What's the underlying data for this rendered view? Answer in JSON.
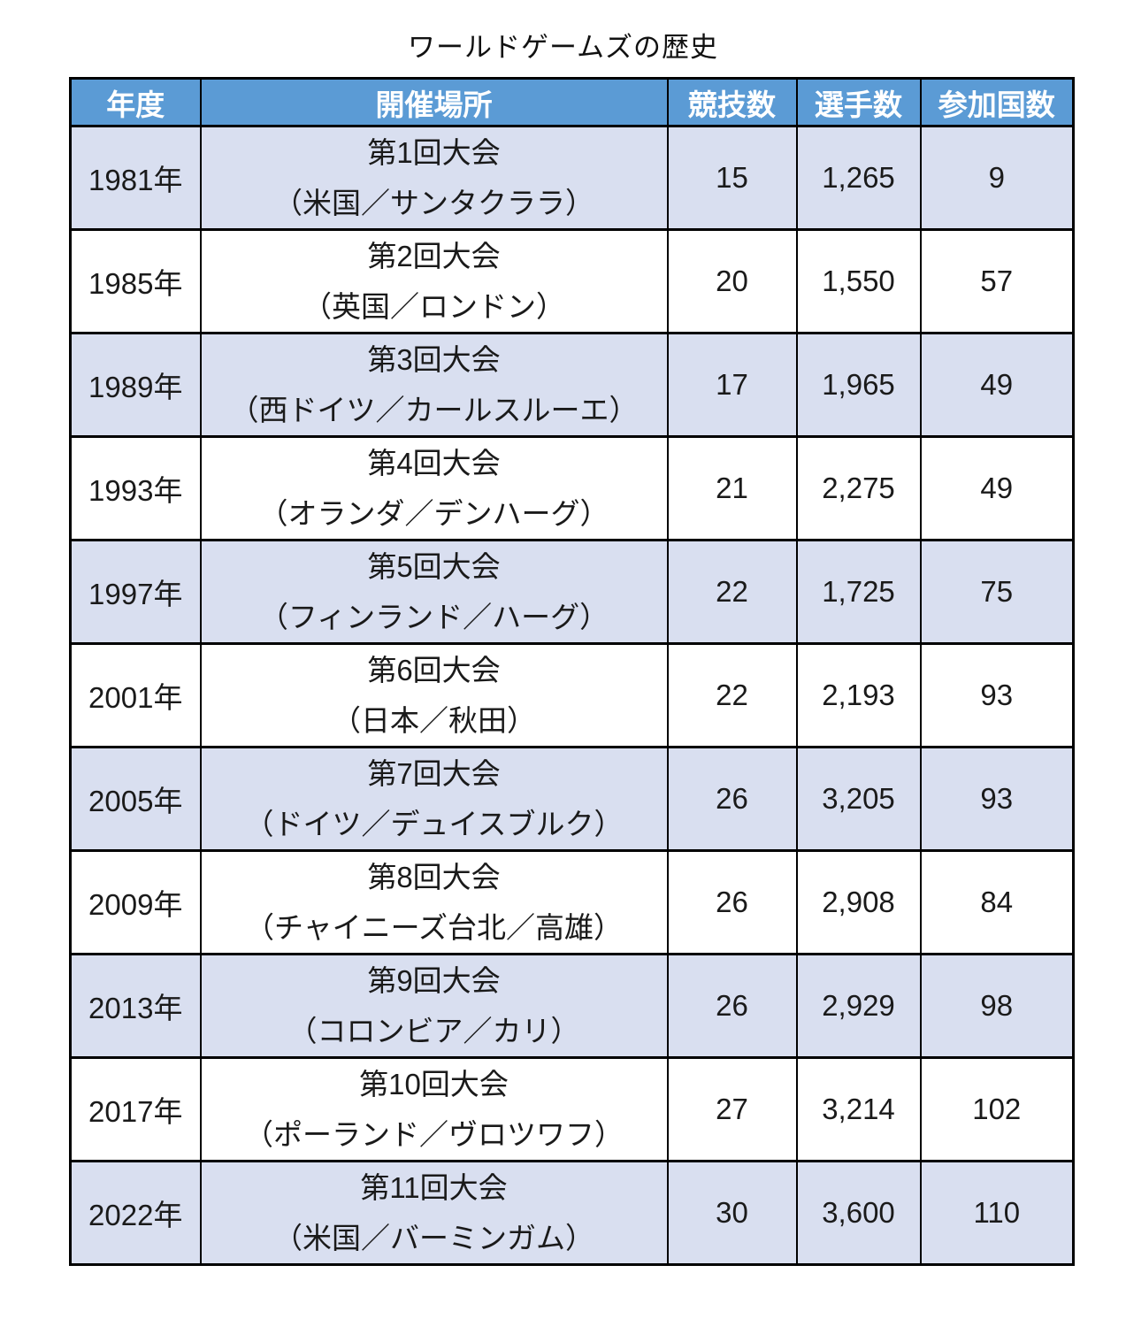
{
  "title": "ワールドゲームズの歴史",
  "table": {
    "headers": {
      "year": "年度",
      "venue": "開催場所",
      "sports": "競技数",
      "athletes": "選手数",
      "countries": "参加国数"
    },
    "rows": [
      {
        "year": "1981年",
        "event": "第1回大会",
        "location": "（米国／サンタクララ）",
        "sports": "15",
        "athletes": "1,265",
        "countries": "9"
      },
      {
        "year": "1985年",
        "event": "第2回大会",
        "location": "（英国／ロンドン）",
        "sports": "20",
        "athletes": "1,550",
        "countries": "57"
      },
      {
        "year": "1989年",
        "event": "第3回大会",
        "location": "（西ドイツ／カールスルーエ）",
        "sports": "17",
        "athletes": "1,965",
        "countries": "49"
      },
      {
        "year": "1993年",
        "event": "第4回大会",
        "location": "（オランダ／デンハーグ）",
        "sports": "21",
        "athletes": "2,275",
        "countries": "49"
      },
      {
        "year": "1997年",
        "event": "第5回大会",
        "location": "（フィンランド／ハーグ）",
        "sports": "22",
        "athletes": "1,725",
        "countries": "75"
      },
      {
        "year": "2001年",
        "event": "第6回大会",
        "location": "（日本／秋田）",
        "sports": "22",
        "athletes": "2,193",
        "countries": "93"
      },
      {
        "year": "2005年",
        "event": "第7回大会",
        "location": "（ドイツ／デュイスブルク）",
        "sports": "26",
        "athletes": "3,205",
        "countries": "93"
      },
      {
        "year": "2009年",
        "event": "第8回大会",
        "location": "（チャイニーズ台北／高雄）",
        "sports": "26",
        "athletes": "2,908",
        "countries": "84"
      },
      {
        "year": "2013年",
        "event": "第9回大会",
        "location": "（コロンビア／カリ）",
        "sports": "26",
        "athletes": "2,929",
        "countries": "98"
      },
      {
        "year": "2017年",
        "event": "第10回大会",
        "location": "（ポーランド／ヴロツワフ）",
        "sports": "27",
        "athletes": "3,214",
        "countries": "102"
      },
      {
        "year": "2022年",
        "event": "第11回大会",
        "location": "（米国／バーミンガム）",
        "sports": "30",
        "athletes": "3,600",
        "countries": "110"
      }
    ]
  },
  "colors": {
    "header_bg": "#5B9BD5",
    "header_text": "#FFFFFF",
    "row_shaded_bg": "#D9DFF0",
    "row_plain_bg": "#FFFFFF",
    "border": "#000000",
    "text": "#1A1A1A"
  }
}
